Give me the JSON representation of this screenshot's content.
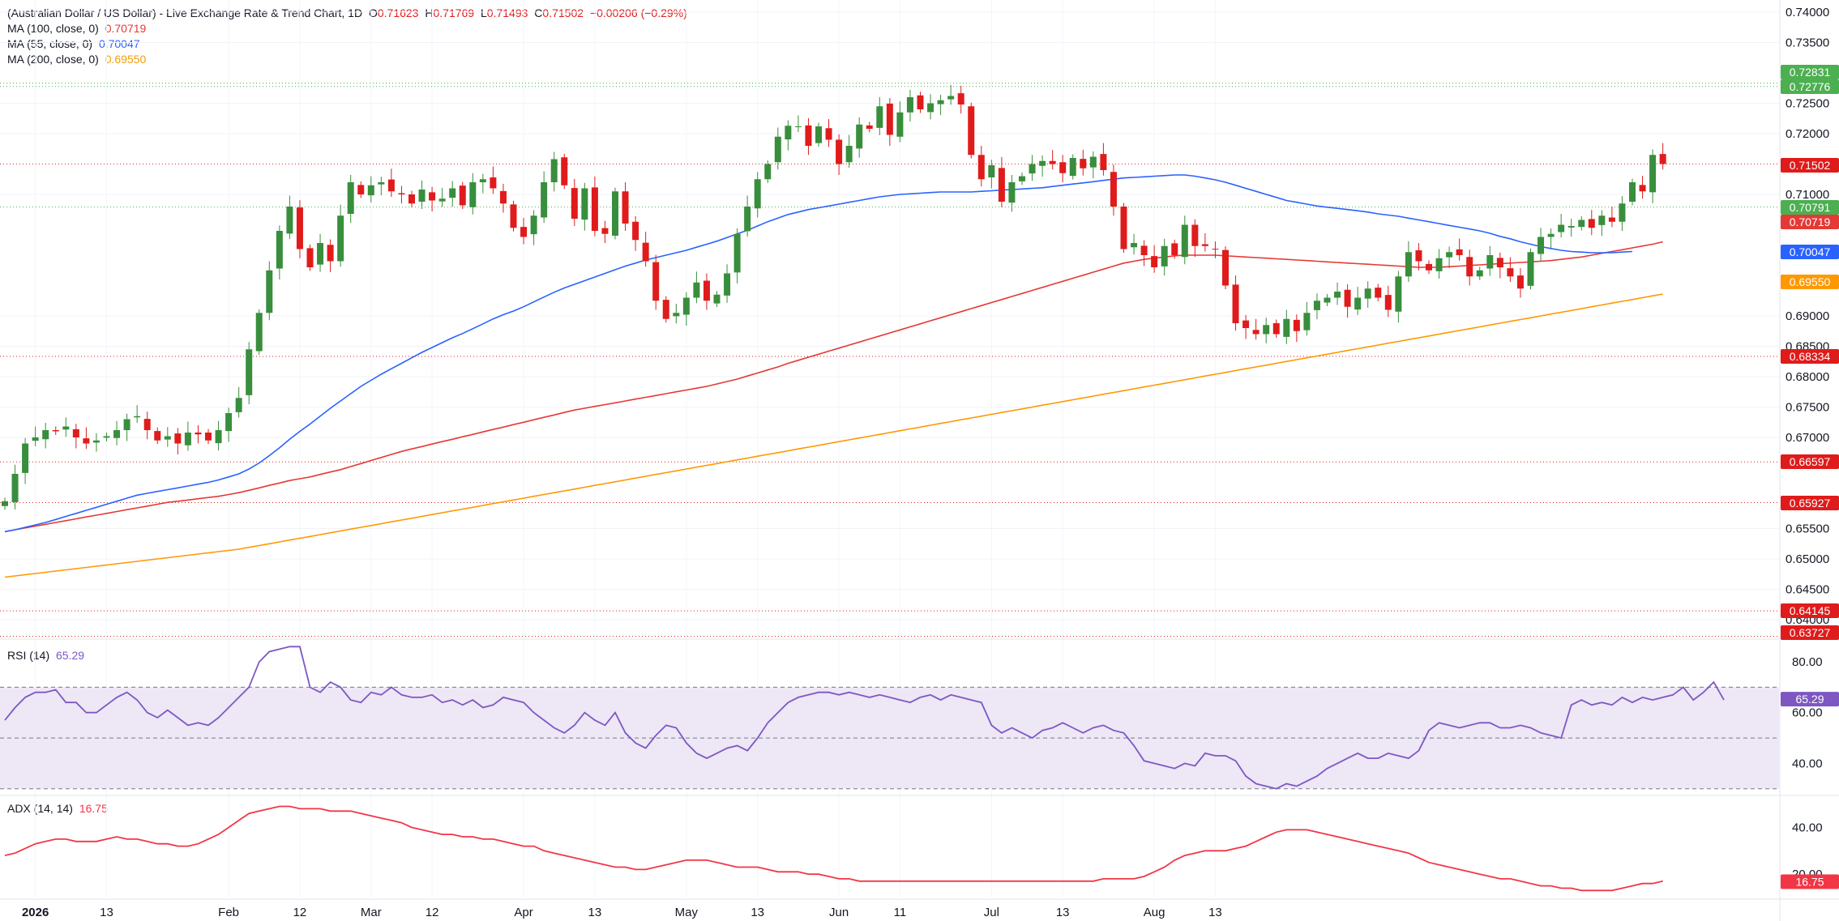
{
  "header": {
    "title": "(Australian Dollar / US Dollar) - Live Exchange Rate & Trend Chart, 1D",
    "ohlc": {
      "o_label": "O",
      "o": "0.71623",
      "h_label": "H",
      "h": "0.71769",
      "l_label": "L",
      "l": "0.71493",
      "c_label": "C",
      "c": "0.71502",
      "change": "−0.00206 (−0.29%)"
    },
    "ma100": {
      "label": "MA (100, close, 0)",
      "value": "0.70719"
    },
    "ma55": {
      "label": "MA (55, close, 0)",
      "value": "0.70047"
    },
    "ma200": {
      "label": "MA (200, close, 0)",
      "value": "0.69550"
    }
  },
  "rsi": {
    "label": "RSI (14)",
    "value": "65.29"
  },
  "adx": {
    "label": "ADX (14, 14)",
    "value": "16.75"
  },
  "colors": {
    "up": "#26a69a",
    "up_body": "#388e3c",
    "down": "#e01b1b",
    "ma100": "#e53935",
    "ma55": "#2962ff",
    "ma200": "#ff9800",
    "rsi": "#7e57c2",
    "rsi_band": "#ede7f6",
    "adx": "#f23645",
    "level_red": "#e01b1b",
    "level_green": "#4caf50"
  },
  "chart_data": [
    {
      "type": "candlestick",
      "ylim": [
        0.6372,
        0.74
      ],
      "y_ticks": [
        "0.74000",
        "0.73500",
        "0.72500",
        "0.72000",
        "0.71000",
        "0.69000",
        "0.68500",
        "0.68000",
        "0.67500",
        "0.67000",
        "0.65500",
        "0.65000",
        "0.64500",
        "0.64000"
      ],
      "x_ticks": [
        "2026",
        "13",
        "Feb",
        "12",
        "Mar",
        "12",
        "Apr",
        "13",
        "May",
        "13",
        "Jun",
        "11",
        "Jul",
        "13",
        "Aug",
        "13"
      ],
      "price_tags": [
        {
          "label": "0.72831",
          "color": "#4caf50"
        },
        {
          "label": "0.72776",
          "color": "#4caf50"
        },
        {
          "label": "0.71502",
          "color": "#e01b1b"
        },
        {
          "label": "0.70791",
          "color": "#4caf50"
        },
        {
          "label": "0.70719",
          "color": "#e53935"
        },
        {
          "label": "0.70047",
          "color": "#2962ff"
        },
        {
          "label": "0.69550",
          "color": "#ff9800"
        },
        {
          "label": "0.68334",
          "color": "#e01b1b"
        },
        {
          "label": "0.66597",
          "color": "#e01b1b"
        },
        {
          "label": "0.65927",
          "color": "#e01b1b"
        },
        {
          "label": "0.64145",
          "color": "#e01b1b"
        },
        {
          "label": "0.63727",
          "color": "#e01b1b"
        }
      ],
      "levels": [
        {
          "value": 0.72831,
          "color": "#4caf50"
        },
        {
          "value": 0.72776,
          "color": "#4caf50"
        },
        {
          "value": 0.71502,
          "color": "#e01b1b"
        },
        {
          "value": 0.70791,
          "color": "#4caf50"
        },
        {
          "value": 0.68334,
          "color": "#e01b1b"
        },
        {
          "value": 0.66597,
          "color": "#e01b1b"
        },
        {
          "value": 0.65927,
          "color": "#e01b1b"
        },
        {
          "value": 0.64145,
          "color": "#e01b1b"
        },
        {
          "value": 0.63727,
          "color": "#e01b1b"
        }
      ],
      "close": [
        0.6595,
        0.664,
        0.669,
        0.67,
        0.6712,
        0.671,
        0.6718,
        0.67,
        0.669,
        0.6695,
        0.6702,
        0.6712,
        0.673,
        0.6735,
        0.6712,
        0.6695,
        0.6702,
        0.669,
        0.6708,
        0.6705,
        0.6695,
        0.6712,
        0.674,
        0.6765,
        0.6845,
        0.6905,
        0.6975,
        0.704,
        0.708,
        0.701,
        0.698,
        0.702,
        0.699,
        0.7065,
        0.712,
        0.71,
        0.7115,
        0.712,
        0.7105,
        0.71,
        0.7085,
        0.7108,
        0.709,
        0.7093,
        0.711,
        0.7082,
        0.712,
        0.7125,
        0.711,
        0.7085,
        0.7045,
        0.703,
        0.7065,
        0.712,
        0.7158,
        0.7115,
        0.706,
        0.711,
        0.704,
        0.7035,
        0.7105,
        0.7052,
        0.7025,
        0.699,
        0.6925,
        0.6895,
        0.6905,
        0.693,
        0.6955,
        0.6925,
        0.6935,
        0.697,
        0.7035,
        0.708,
        0.7125,
        0.715,
        0.7195,
        0.7213,
        0.7212,
        0.718,
        0.7212,
        0.719,
        0.715,
        0.718,
        0.7215,
        0.7208,
        0.7245,
        0.7198,
        0.7235,
        0.726,
        0.724,
        0.725,
        0.7255,
        0.7262,
        0.7248,
        0.7165,
        0.7125,
        0.7148,
        0.7088,
        0.712,
        0.713,
        0.715,
        0.7155,
        0.715,
        0.7135,
        0.716,
        0.7143,
        0.7162,
        0.714,
        0.708,
        0.701,
        0.702,
        0.7,
        0.698,
        0.7015,
        0.7,
        0.705,
        0.7015,
        0.7015,
        0.701,
        0.695,
        0.6888,
        0.688,
        0.687,
        0.6885,
        0.687,
        0.6895,
        0.6875,
        0.6905,
        0.6925,
        0.693,
        0.694,
        0.6915,
        0.693,
        0.6945,
        0.693,
        0.691,
        0.6965,
        0.7005,
        0.699,
        0.6975,
        0.6995,
        0.7005,
        0.7,
        0.6965,
        0.6975,
        0.7,
        0.698,
        0.6965,
        0.6945,
        0.7005,
        0.703,
        0.7035,
        0.705,
        0.7048,
        0.7058,
        0.7045,
        0.7065,
        0.7055,
        0.7085,
        0.712,
        0.7105,
        0.7165,
        0.715
      ],
      "ma55": [
        0.6545,
        0.6548,
        0.6552,
        0.6556,
        0.656,
        0.6565,
        0.657,
        0.6575,
        0.658,
        0.6585,
        0.659,
        0.6595,
        0.66,
        0.6605,
        0.6608,
        0.6611,
        0.6614,
        0.6617,
        0.662,
        0.6623,
        0.6626,
        0.663,
        0.6635,
        0.664,
        0.6648,
        0.6658,
        0.667,
        0.6683,
        0.6697,
        0.671,
        0.6722,
        0.6735,
        0.6748,
        0.676,
        0.6772,
        0.6784,
        0.6794,
        0.6804,
        0.6813,
        0.6822,
        0.6831,
        0.684,
        0.6848,
        0.6856,
        0.6864,
        0.6871,
        0.6879,
        0.6887,
        0.6895,
        0.6902,
        0.6908,
        0.6915,
        0.6923,
        0.6931,
        0.6939,
        0.6946,
        0.6952,
        0.6958,
        0.6964,
        0.697,
        0.6976,
        0.6982,
        0.6987,
        0.6992,
        0.6996,
        0.7,
        0.7004,
        0.7008,
        0.7013,
        0.7018,
        0.7023,
        0.7029,
        0.7035,
        0.7041,
        0.7048,
        0.7055,
        0.7061,
        0.7067,
        0.7071,
        0.7075,
        0.7078,
        0.7081,
        0.7084,
        0.7087,
        0.709,
        0.7093,
        0.7096,
        0.7098,
        0.71,
        0.7101,
        0.7102,
        0.7103,
        0.7104,
        0.7104,
        0.7104,
        0.7104,
        0.7105,
        0.7106,
        0.7107,
        0.7108,
        0.7109,
        0.711,
        0.7111,
        0.7113,
        0.7115,
        0.7117,
        0.7119,
        0.7121,
        0.7123,
        0.7125,
        0.7127,
        0.7128,
        0.7129,
        0.713,
        0.7131,
        0.7132,
        0.7132,
        0.713,
        0.7127,
        0.7124,
        0.712,
        0.7115,
        0.711,
        0.7105,
        0.71,
        0.7095,
        0.709,
        0.7087,
        0.7084,
        0.7081,
        0.7079,
        0.7077,
        0.7075,
        0.7073,
        0.7071,
        0.7068,
        0.7066,
        0.7064,
        0.7061,
        0.7058,
        0.7055,
        0.7052,
        0.7049,
        0.7046,
        0.7043,
        0.704,
        0.7036,
        0.7031,
        0.7027,
        0.7022,
        0.7018,
        0.7014,
        0.7011,
        0.7008,
        0.7006,
        0.7005,
        0.7004,
        0.7004,
        0.7004,
        0.7005,
        0.7006
      ],
      "ma100": [
        0.6545,
        0.6548,
        0.6551,
        0.6554,
        0.6557,
        0.656,
        0.6563,
        0.6566,
        0.6569,
        0.6572,
        0.6575,
        0.6578,
        0.6581,
        0.6584,
        0.6587,
        0.659,
        0.6593,
        0.6595,
        0.6597,
        0.6599,
        0.6601,
        0.6603,
        0.6606,
        0.6609,
        0.6613,
        0.6617,
        0.6621,
        0.6625,
        0.6629,
        0.6632,
        0.6635,
        0.6639,
        0.6643,
        0.6647,
        0.6652,
        0.6657,
        0.6662,
        0.6667,
        0.6672,
        0.6677,
        0.6681,
        0.6685,
        0.6689,
        0.6693,
        0.6697,
        0.6701,
        0.6705,
        0.6709,
        0.6713,
        0.6717,
        0.6721,
        0.6725,
        0.6729,
        0.6733,
        0.6737,
        0.6741,
        0.6745,
        0.6748,
        0.6751,
        0.6754,
        0.6757,
        0.676,
        0.6763,
        0.6766,
        0.6769,
        0.6772,
        0.6775,
        0.6778,
        0.6781,
        0.6784,
        0.6788,
        0.6792,
        0.6796,
        0.6801,
        0.6806,
        0.6811,
        0.6816,
        0.6822,
        0.6827,
        0.6832,
        0.6837,
        0.6842,
        0.6847,
        0.6852,
        0.6857,
        0.6862,
        0.6867,
        0.6872,
        0.6877,
        0.6882,
        0.6887,
        0.6892,
        0.6897,
        0.6902,
        0.6907,
        0.6912,
        0.6917,
        0.6922,
        0.6927,
        0.6932,
        0.6937,
        0.6942,
        0.6947,
        0.6952,
        0.6957,
        0.6962,
        0.6967,
        0.6972,
        0.6977,
        0.6982,
        0.6987,
        0.699,
        0.6993,
        0.6995,
        0.6997,
        0.6999,
        0.7,
        0.7,
        0.7,
        0.7,
        0.6999,
        0.6998,
        0.6997,
        0.6996,
        0.6995,
        0.6994,
        0.6993,
        0.6992,
        0.6991,
        0.699,
        0.6989,
        0.6988,
        0.6987,
        0.6986,
        0.6985,
        0.6984,
        0.6983,
        0.6982,
        0.6981,
        0.698,
        0.698,
        0.698,
        0.6981,
        0.6982,
        0.6983,
        0.6984,
        0.6985,
        0.6986,
        0.6987,
        0.6988,
        0.6989,
        0.699,
        0.6991,
        0.6993,
        0.6995,
        0.6997,
        0.7,
        0.7003,
        0.7006,
        0.7009,
        0.7012,
        0.7015,
        0.7018,
        0.7022
      ],
      "ma200": [
        0.647,
        0.6472,
        0.6474,
        0.6476,
        0.6478,
        0.648,
        0.6482,
        0.6484,
        0.6486,
        0.6488,
        0.649,
        0.6492,
        0.6494,
        0.6496,
        0.6498,
        0.65,
        0.6502,
        0.6504,
        0.6506,
        0.6508,
        0.651,
        0.6512,
        0.6514,
        0.6516,
        0.6519,
        0.6522,
        0.6525,
        0.6528,
        0.6531,
        0.6534,
        0.6537,
        0.654,
        0.6543,
        0.6546,
        0.6549,
        0.6552,
        0.6555,
        0.6558,
        0.6561,
        0.6564,
        0.6567,
        0.657,
        0.6573,
        0.6576,
        0.6579,
        0.6582,
        0.6585,
        0.6588,
        0.6591,
        0.6594,
        0.6597,
        0.66,
        0.6603,
        0.6606,
        0.6609,
        0.6612,
        0.6615,
        0.6618,
        0.6621,
        0.6624,
        0.6627,
        0.663,
        0.6633,
        0.6636,
        0.6639,
        0.6642,
        0.6645,
        0.6648,
        0.6651,
        0.6654,
        0.6657,
        0.666,
        0.6663,
        0.6666,
        0.6669,
        0.6672,
        0.6675,
        0.6678,
        0.6681,
        0.6684,
        0.6687,
        0.669,
        0.6693,
        0.6696,
        0.6699,
        0.6702,
        0.6705,
        0.6708,
        0.6711,
        0.6714,
        0.6717,
        0.672,
        0.6723,
        0.6726,
        0.6729,
        0.6732,
        0.6735,
        0.6738,
        0.6741,
        0.6744,
        0.6747,
        0.675,
        0.6753,
        0.6756,
        0.6759,
        0.6762,
        0.6765,
        0.6768,
        0.6771,
        0.6774,
        0.6777,
        0.678,
        0.6783,
        0.6786,
        0.6789,
        0.6792,
        0.6795,
        0.6798,
        0.6801,
        0.6804,
        0.6807,
        0.681,
        0.6813,
        0.6816,
        0.6819,
        0.6822,
        0.6825,
        0.6828,
        0.6831,
        0.6834,
        0.6837,
        0.684,
        0.6843,
        0.6846,
        0.6849,
        0.6852,
        0.6855,
        0.6858,
        0.6861,
        0.6864,
        0.6867,
        0.687,
        0.6873,
        0.6876,
        0.6879,
        0.6882,
        0.6885,
        0.6888,
        0.6891,
        0.6894,
        0.6897,
        0.69,
        0.6903,
        0.6906,
        0.6909,
        0.6912,
        0.6915,
        0.6918,
        0.6921,
        0.6924,
        0.6927,
        0.693,
        0.6933,
        0.6936
      ]
    },
    {
      "type": "line",
      "name": "RSI (14)",
      "ylim": [
        28,
        88
      ],
      "y_ticks": [
        "80.00",
        "60.00",
        "40.00"
      ],
      "bands": [
        70,
        50,
        30
      ],
      "values": [
        57,
        62,
        66,
        68,
        68,
        69,
        64,
        64,
        60,
        60,
        63,
        66,
        68,
        65,
        60,
        58,
        61,
        58,
        55,
        56,
        55,
        58,
        62,
        66,
        70,
        80,
        84,
        85,
        86,
        86,
        70,
        68,
        72,
        70,
        65,
        64,
        68,
        67,
        70,
        67,
        66,
        66,
        67,
        64,
        65,
        63,
        65,
        62,
        63,
        66,
        65,
        64,
        60,
        57,
        54,
        52,
        55,
        60,
        57,
        55,
        60,
        52,
        48,
        46,
        51,
        55,
        54,
        48,
        44,
        42,
        44,
        46,
        47,
        45,
        50,
        56,
        60,
        64,
        66,
        67,
        68,
        68,
        67,
        68,
        67,
        66,
        67,
        66,
        65,
        64,
        66,
        67,
        65,
        67,
        66,
        65,
        64,
        55,
        52,
        54,
        52,
        50,
        53,
        54,
        56,
        54,
        52,
        54,
        55,
        53,
        52,
        47,
        41,
        40,
        39,
        38,
        40,
        39,
        44,
        43,
        43,
        41,
        35,
        32,
        31,
        30,
        32,
        31,
        33,
        35,
        38,
        40,
        42,
        44,
        42,
        42,
        44,
        43,
        42,
        45,
        53,
        56,
        55,
        54,
        55,
        56,
        56,
        54,
        54,
        55,
        54,
        52,
        51,
        50,
        63,
        65,
        63,
        64,
        63,
        66,
        64,
        66,
        65,
        66,
        67,
        70,
        65,
        68,
        72,
        65
      ]
    },
    {
      "type": "line",
      "name": "ADX (14, 14)",
      "ylim": [
        10,
        53
      ],
      "y_ticks": [
        "40.00",
        "20.00"
      ],
      "values": [
        28,
        29,
        31,
        33,
        34,
        35,
        35,
        34,
        34,
        34,
        35,
        36,
        35,
        35,
        34,
        33,
        33,
        32,
        32,
        33,
        35,
        37,
        40,
        43,
        46,
        47,
        48,
        49,
        49,
        48,
        48,
        48,
        47,
        47,
        47,
        46,
        45,
        44,
        43,
        42,
        40,
        39,
        38,
        37,
        37,
        36,
        36,
        35,
        35,
        34,
        33,
        32,
        32,
        30,
        29,
        28,
        27,
        26,
        25,
        24,
        23,
        23,
        22,
        22,
        23,
        24,
        25,
        26,
        26,
        26,
        25,
        24,
        23,
        23,
        23,
        22,
        21,
        21,
        21,
        20,
        20,
        19,
        18,
        18,
        17,
        17,
        17,
        17,
        17,
        17,
        17,
        17,
        17,
        17,
        17,
        17,
        17,
        17,
        17,
        17,
        17,
        17,
        17,
        17,
        17,
        17,
        17,
        17,
        18,
        18,
        18,
        18,
        19,
        21,
        23,
        26,
        28,
        29,
        30,
        30,
        30,
        31,
        32,
        34,
        36,
        38,
        39,
        39,
        39,
        38,
        37,
        36,
        35,
        34,
        33,
        32,
        31,
        30,
        29,
        27,
        25,
        24,
        23,
        22,
        21,
        20,
        19,
        18,
        18,
        17,
        16,
        15,
        15,
        14,
        14,
        13,
        13,
        13,
        13,
        14,
        15,
        16,
        16,
        17
      ]
    }
  ]
}
